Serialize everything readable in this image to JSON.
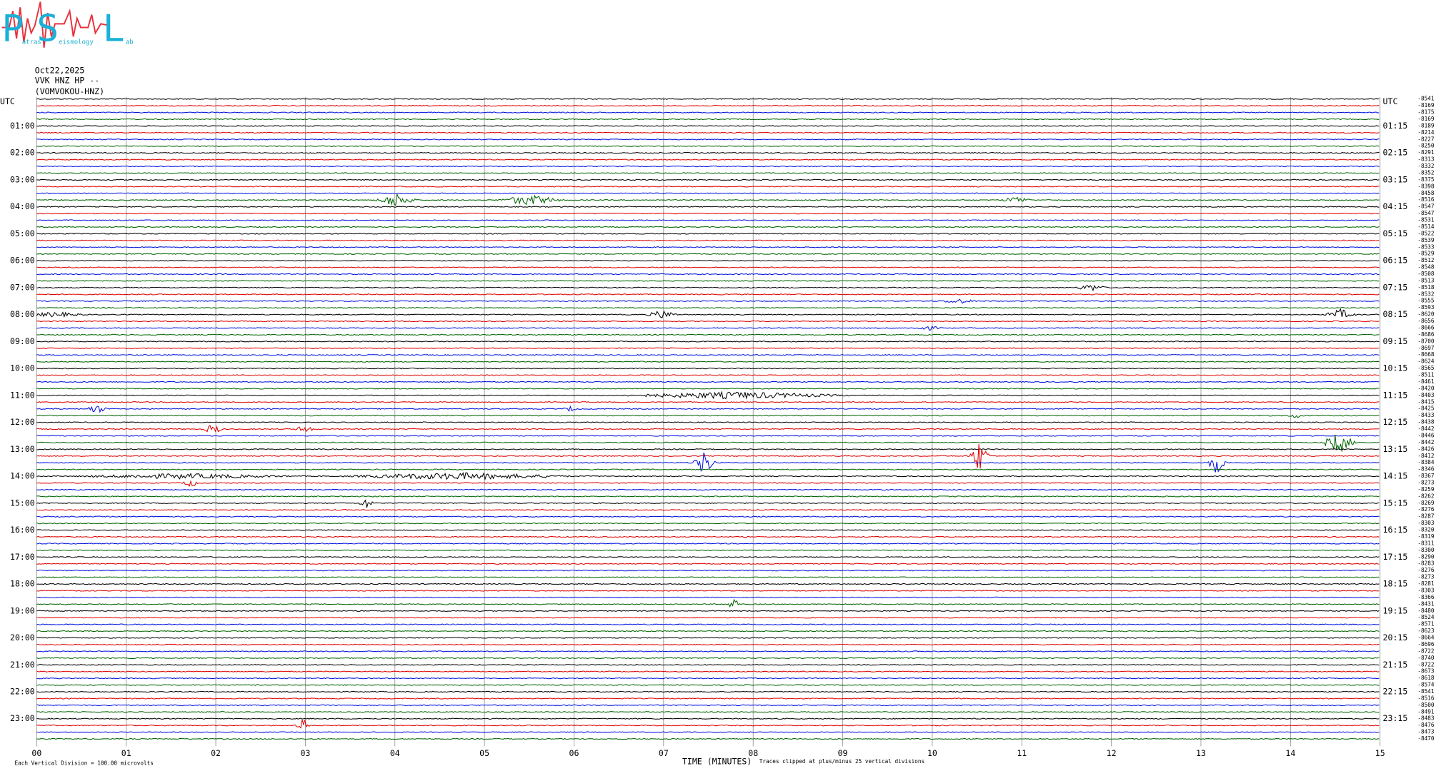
{
  "logo": {
    "letters": [
      "P",
      "S",
      "L"
    ],
    "words": [
      "atras",
      "eismology",
      "ab"
    ]
  },
  "header": {
    "date": "Oct22,2025",
    "station": "VVK HNZ HP --",
    "name": "(VOMVOKOU-HNZ)"
  },
  "left_labels": [
    "UTC",
    "01:00",
    "02:00",
    "03:00",
    "04:00",
    "05:00",
    "06:00",
    "07:00",
    "08:00",
    "09:00",
    "10:00",
    "11:00",
    "12:00",
    "13:00",
    "14:00",
    "15:00",
    "16:00",
    "17:00",
    "18:00",
    "19:00",
    "20:00",
    "21:00",
    "22:00",
    "23:00"
  ],
  "right_labels": [
    "UTC",
    "01:15",
    "02:15",
    "03:15",
    "04:15",
    "05:15",
    "06:15",
    "07:15",
    "08:15",
    "09:15",
    "10:15",
    "11:15",
    "12:15",
    "13:15",
    "14:15",
    "15:15",
    "16:15",
    "17:15",
    "18:15",
    "19:15",
    "20:15",
    "21:15",
    "22:15",
    "23:15"
  ],
  "trace_offsets": [
    -8541,
    -8169,
    -8175,
    -8169,
    -8189,
    -8214,
    -8227,
    -8250,
    -8291,
    -8313,
    -8332,
    -8352,
    -8375,
    -8398,
    -8458,
    -8516,
    -8547,
    -8547,
    -8531,
    -8514,
    -8522,
    -8539,
    -8533,
    -8529,
    -8512,
    -8548,
    -8508,
    -8513,
    -8518,
    -8532,
    -8555,
    -8593,
    -8620,
    -8656,
    -8666,
    -8686,
    -8700,
    -8697,
    -8668,
    -8624,
    -8565,
    -8511,
    -8461,
    -8420,
    -8403,
    -8415,
    -8425,
    -8433,
    -8438,
    -8442,
    -8446,
    -8442,
    -8426,
    -8412,
    -8384,
    -8346,
    -8367,
    -8273,
    -8259,
    -8262,
    -8269,
    -8276,
    -8287,
    -8303,
    -8320,
    -8319,
    -8311,
    -8300,
    -8290,
    -8283,
    -8276,
    -8273,
    -8281,
    -8303,
    -8366,
    -8431,
    -8480,
    -8524,
    -8571,
    -8623,
    -8664,
    -8696,
    -8722,
    -8740,
    -8722,
    -8673,
    -8618,
    -8574,
    -8541,
    -8516,
    -8500,
    -8491,
    -8483,
    -8476,
    -8473,
    -8470
  ],
  "x_ticks": [
    "00",
    "01",
    "02",
    "03",
    "04",
    "05",
    "06",
    "07",
    "08",
    "09",
    "10",
    "11",
    "12",
    "13",
    "14",
    "15"
  ],
  "footer": {
    "scale": "Each Vertical Division =  100.00 microvolts",
    "axis_title": "TIME (MINUTES)",
    "clip_note": "Traces clipped at plus/minus 25 vertical divisions"
  }
}
